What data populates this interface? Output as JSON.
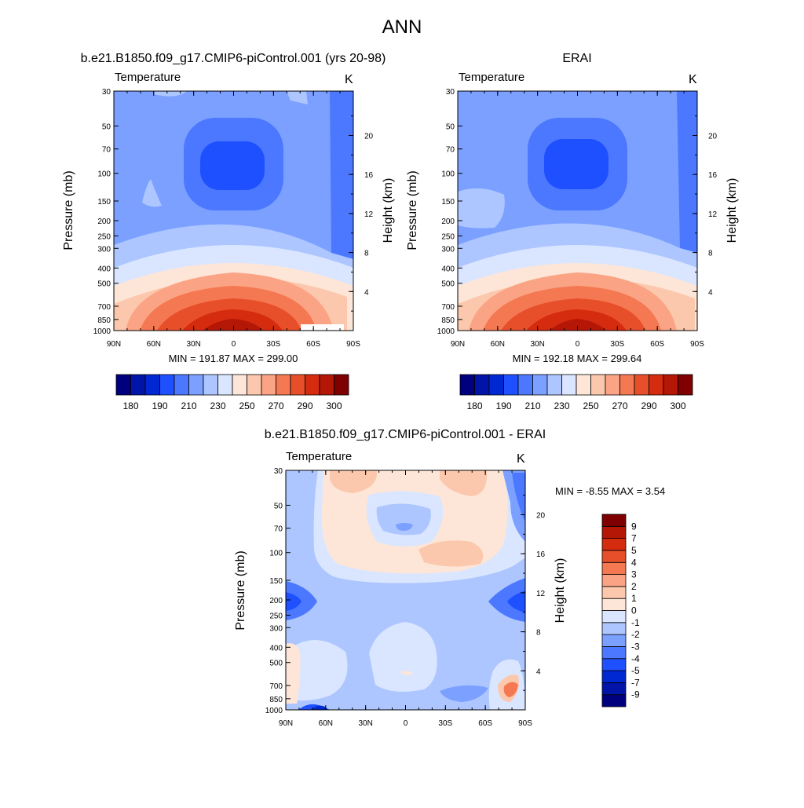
{
  "page_title": "ANN",
  "colormap": {
    "full": [
      "#00007f",
      "#0014a8",
      "#0028d2",
      "#1e50ff",
      "#4b78ff",
      "#7ba0ff",
      "#adc6ff",
      "#dae6ff",
      "#fde6d7",
      "#fcc8ad",
      "#fba485",
      "#f47852",
      "#e74f2a",
      "#d52b0e",
      "#b41706",
      "#7f0000"
    ],
    "diff": [
      "#00007f",
      "#0014a8",
      "#0028d2",
      "#1e50ff",
      "#4b78ff",
      "#7ba0ff",
      "#adc6ff",
      "#dae6ff",
      "#fde6d7",
      "#fcc8ad",
      "#fba485",
      "#f47852",
      "#e74f2a",
      "#d52b0e",
      "#b41706",
      "#7f0000"
    ]
  },
  "chart_data": [
    {
      "id": "model",
      "type": "contour",
      "title": "b.e21.B1850.f09_g17.CMIP6-piControl.001 (yrs 20-98)",
      "variable": "Temperature",
      "units": "K",
      "ylabel": "Pressure (mb)",
      "y2label": "Height (km)",
      "x_ticks": [
        "90N",
        "60N",
        "30N",
        "0",
        "30S",
        "60S",
        "90S"
      ],
      "y_ticks": [
        "30",
        "50",
        "70",
        "100",
        "150",
        "200",
        "250",
        "300",
        "400",
        "500",
        "700",
        "850",
        "1000"
      ],
      "y2_ticks": [
        "20",
        "16",
        "12",
        "8",
        "4"
      ],
      "stats": "MIN = 191.87  MAX = 299.00",
      "min": 191.87,
      "max": 299.0,
      "colorbar_labels": [
        "180",
        "190",
        "210",
        "230",
        "250",
        "270",
        "290",
        "300"
      ]
    },
    {
      "id": "obs",
      "type": "contour",
      "title": "ERAI",
      "variable": "Temperature",
      "units": "K",
      "ylabel": "Pressure (mb)",
      "y2label": "Height (km)",
      "x_ticks": [
        "90N",
        "60N",
        "30N",
        "0",
        "30S",
        "60S",
        "90S"
      ],
      "y_ticks": [
        "30",
        "50",
        "70",
        "100",
        "150",
        "200",
        "250",
        "300",
        "400",
        "500",
        "700",
        "850",
        "1000"
      ],
      "y2_ticks": [
        "20",
        "16",
        "12",
        "8",
        "4"
      ],
      "stats": "MIN = 192.18  MAX = 299.64",
      "min": 192.18,
      "max": 299.64,
      "colorbar_labels": [
        "180",
        "190",
        "210",
        "230",
        "250",
        "270",
        "290",
        "300"
      ]
    },
    {
      "id": "diff",
      "type": "contour",
      "title": "b.e21.B1850.f09_g17.CMIP6-piControl.001 - ERAI",
      "variable": "Temperature",
      "units": "K",
      "ylabel": "Pressure (mb)",
      "y2label": "Height (km)",
      "x_ticks": [
        "90N",
        "60N",
        "30N",
        "0",
        "30S",
        "60S",
        "90S"
      ],
      "y_ticks": [
        "30",
        "50",
        "70",
        "100",
        "150",
        "200",
        "250",
        "300",
        "400",
        "500",
        "700",
        "850",
        "1000"
      ],
      "y2_ticks": [
        "20",
        "16",
        "12",
        "8",
        "4"
      ],
      "stats": "MIN =  -8.55  MAX =   3.54",
      "min": -8.55,
      "max": 3.54,
      "colorbar_labels": [
        "9",
        "7",
        "5",
        "4",
        "3",
        "2",
        "1",
        "0",
        "-1",
        "-2",
        "-3",
        "-4",
        "-5",
        "-7",
        "-9"
      ]
    }
  ]
}
